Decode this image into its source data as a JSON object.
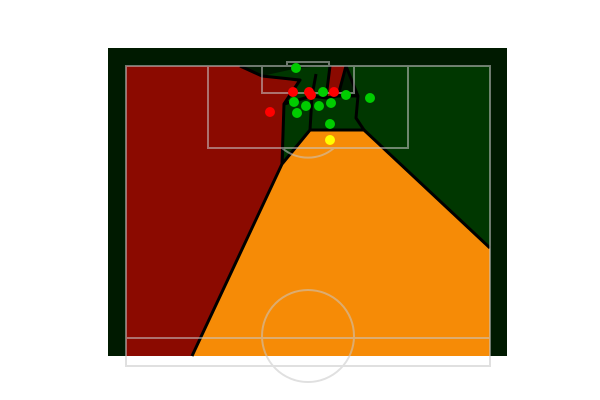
{
  "colors": {
    "background": "#ffffff",
    "pitch": "#001a00",
    "attacking_region": "#8b0a00",
    "defending_region": "#003700",
    "ball_region": "#f68b06",
    "pitch_lines": "#c8c8c8",
    "region_border": "#000000",
    "attacker_marker": "#ff0000",
    "defender_marker": "#00cc00",
    "ball_marker": "#ffff00"
  },
  "players": {
    "attackers": 6,
    "defenders": 12,
    "ball": 1
  }
}
